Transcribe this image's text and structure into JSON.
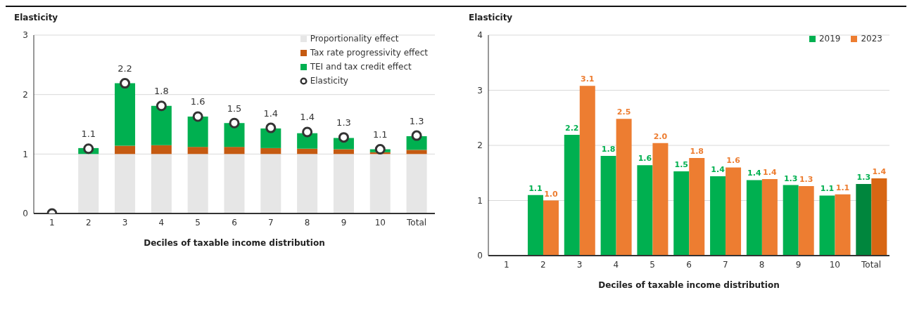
{
  "chart_data": [
    {
      "type": "bar",
      "stacked": true,
      "ylabel": "Elasticity",
      "xlabel": "Deciles of taxable income distribution",
      "categories": [
        "1",
        "2",
        "3",
        "4",
        "5",
        "6",
        "7",
        "8",
        "9",
        "10",
        "Total"
      ],
      "ylim": [
        0,
        3
      ],
      "yticks": [
        0,
        1,
        2,
        3
      ],
      "grid": "y",
      "legend": "top right",
      "series": [
        {
          "name": "Proportionality effect",
          "color": "#e6e6e6",
          "values": [
            null,
            1,
            1,
            1,
            1,
            1,
            1,
            1,
            1,
            1,
            1
          ]
        },
        {
          "name": "Tax rate progressivity effect",
          "color": "#c55a11",
          "values": [
            null,
            0.0,
            0.14,
            0.15,
            0.12,
            0.12,
            0.1,
            0.09,
            0.08,
            0.03,
            0.07
          ]
        },
        {
          "name": "TEI and tax credit effect",
          "color": "#00b050",
          "values": [
            null,
            0.1,
            1.05,
            0.66,
            0.51,
            0.4,
            0.33,
            0.26,
            0.19,
            0.05,
            0.23
          ]
        },
        {
          "name": "Elasticity",
          "type": "scatter",
          "marker": "circle",
          "color": "#333333",
          "values": [
            0,
            1.09,
            2.19,
            1.81,
            1.63,
            1.52,
            1.44,
            1.37,
            1.28,
            1.08,
            1.31
          ],
          "value_labels": [
            null,
            "1.1",
            "2.2",
            "1.8",
            "1.6",
            "1.5",
            "1.4",
            "1.4",
            "1.3",
            "1.1",
            "1.3"
          ]
        }
      ]
    },
    {
      "type": "bar",
      "ylabel": "Elasticity",
      "xlabel": "Deciles of taxable income distribution",
      "categories": [
        "1",
        "2",
        "3",
        "4",
        "5",
        "6",
        "7",
        "8",
        "9",
        "10",
        "Total"
      ],
      "ylim": [
        0,
        4
      ],
      "yticks": [
        0,
        1,
        2,
        3,
        4
      ],
      "grid": "y",
      "legend": "top right",
      "series": [
        {
          "name": "2019",
          "color": "#00b050",
          "colors": [
            "#00b050",
            "#00b050",
            "#00b050",
            "#00b050",
            "#00b050",
            "#00b050",
            "#00b050",
            "#00b050",
            "#00b050",
            "#00b050",
            "#00863d"
          ],
          "values": [
            null,
            1.1,
            2.19,
            1.81,
            1.64,
            1.53,
            1.44,
            1.37,
            1.28,
            1.09,
            1.3
          ],
          "value_labels": [
            null,
            "1.1",
            "2.2",
            "1.8",
            "1.6",
            "1.5",
            "1.4",
            "1.4",
            "1.3",
            "1.1",
            "1.3"
          ]
        },
        {
          "name": "2023",
          "color": "#ed7d31",
          "colors": [
            "#ed7d31",
            "#ed7d31",
            "#ed7d31",
            "#ed7d31",
            "#ed7d31",
            "#ed7d31",
            "#ed7d31",
            "#ed7d31",
            "#ed7d31",
            "#ed7d31",
            "#d86613"
          ],
          "values": [
            null,
            1.0,
            3.08,
            2.48,
            2.04,
            1.77,
            1.6,
            1.39,
            1.26,
            1.11,
            1.4
          ],
          "value_labels": [
            null,
            "1.0",
            "3.1",
            "2.5",
            "2.0",
            "1.8",
            "1.6",
            "1.4",
            "1.3",
            "1.1",
            "1.4"
          ]
        }
      ]
    }
  ]
}
